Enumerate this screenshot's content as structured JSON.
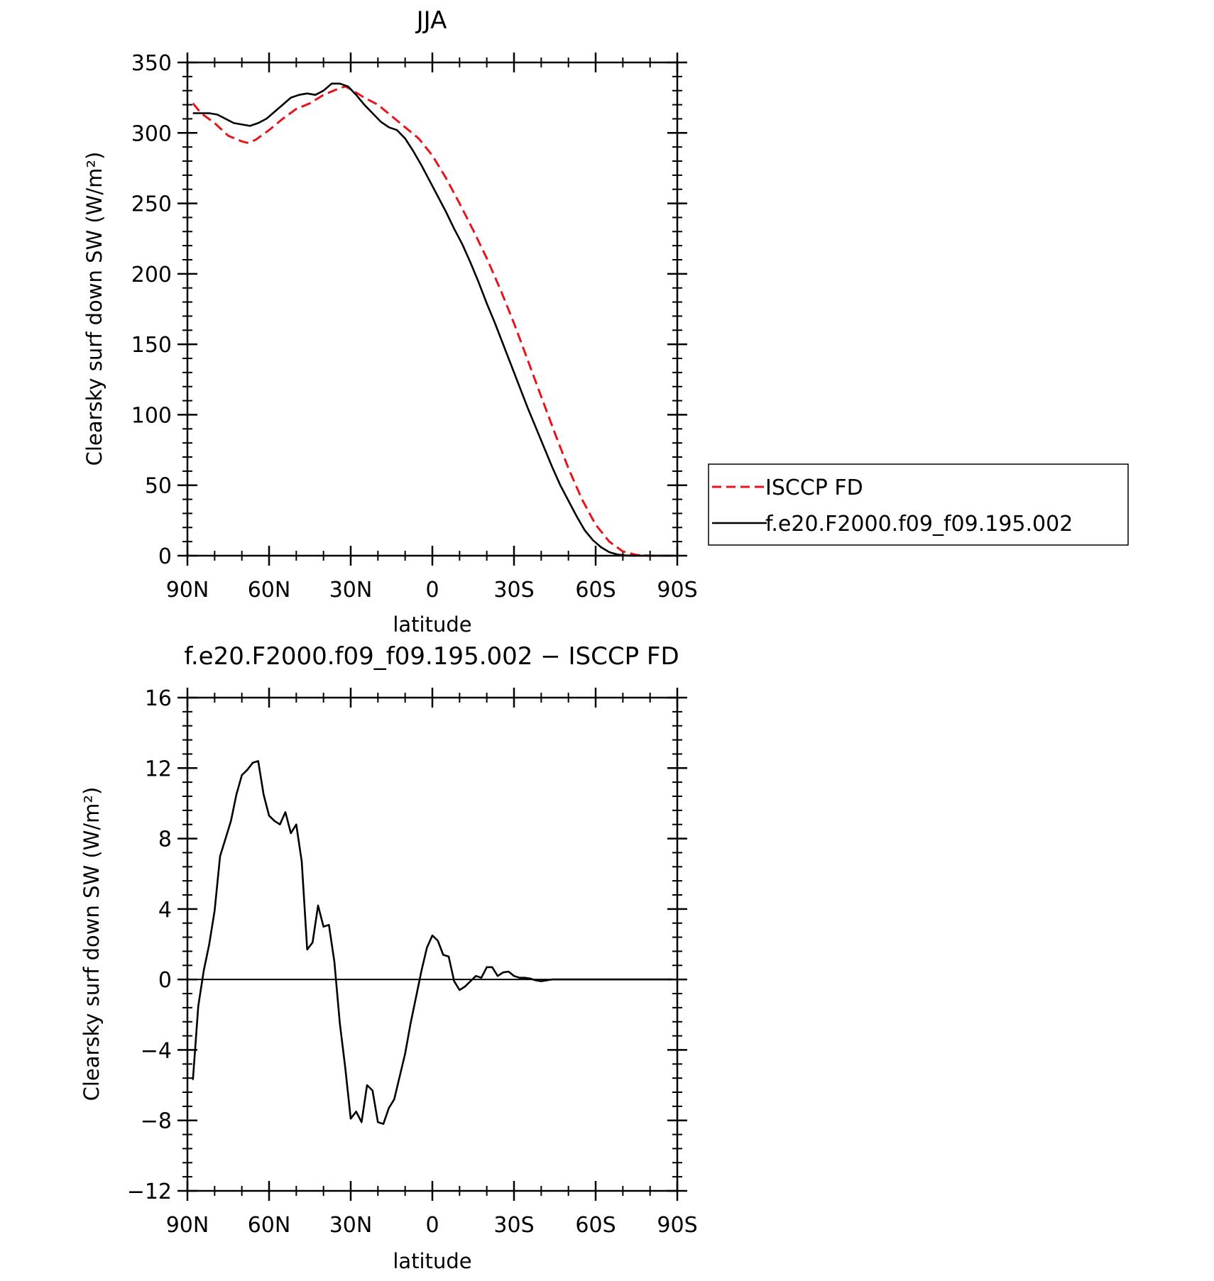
{
  "chart_data": [
    {
      "type": "line",
      "title": "JJA",
      "xlabel": "latitude",
      "ylabel": "Clearsky surf down SW (W/m²)",
      "xlim": [
        90,
        -90
      ],
      "ylim": [
        0,
        350
      ],
      "x_tick_values": [
        90,
        60,
        30,
        0,
        -30,
        -60,
        -90
      ],
      "x_tick_labels": [
        "90N",
        "60N",
        "30N",
        "0",
        "30S",
        "60S",
        "90S"
      ],
      "y_tick_values": [
        0,
        50,
        100,
        150,
        200,
        250,
        300,
        350
      ],
      "y_tick_labels": [
        "0",
        "50",
        "100",
        "150",
        "200",
        "250",
        "300",
        "350"
      ],
      "grid": false,
      "legend": {
        "placement": "right-outside",
        "entries": [
          "ISCCP FD",
          "f.e20.F2000.f09_f09.195.002"
        ]
      },
      "series": [
        {
          "name": "ISCCP FD",
          "color": "#e8141b",
          "dash": "dashed",
          "x": [
            88,
            85,
            80,
            75,
            70,
            68,
            65,
            60,
            55,
            50,
            45,
            40,
            35,
            32,
            30,
            25,
            20,
            15,
            10,
            5,
            0,
            -5,
            -10,
            -15,
            -20,
            -25,
            -30,
            -35,
            -40,
            -45,
            -50,
            -55,
            -60,
            -65,
            -70,
            -75,
            -80,
            -85,
            -88
          ],
          "y": [
            321,
            314,
            307,
            298,
            294,
            293,
            295,
            302,
            310,
            317,
            321,
            327,
            331,
            333,
            331,
            325,
            320,
            312,
            304,
            296,
            284,
            268,
            250,
            231,
            211,
            189,
            165,
            139,
            113,
            87,
            62,
            40,
            22,
            10,
            3,
            0.5,
            0,
            0,
            0
          ]
        },
        {
          "name": "f.e20.F2000.f09_f09.195.002",
          "color": "#000000",
          "dash": "solid",
          "x": [
            88,
            85,
            82,
            79,
            76,
            73,
            70,
            67,
            64,
            61,
            58,
            55,
            52,
            49,
            46,
            43,
            40,
            37,
            34,
            31,
            28,
            25,
            22,
            19,
            16,
            13,
            10,
            7,
            4,
            1,
            -2,
            -5,
            -8,
            -11,
            -14,
            -17,
            -20,
            -23,
            -26,
            -29,
            -32,
            -35,
            -38,
            -41,
            -44,
            -47,
            -50,
            -53,
            -56,
            -59,
            -62,
            -65,
            -68,
            -71,
            -74,
            -77,
            -80,
            -83,
            -86,
            -88
          ],
          "y": [
            314,
            314,
            314,
            313,
            310,
            307,
            306,
            305,
            307,
            310,
            315,
            320,
            325,
            327,
            328,
            327,
            330,
            335,
            335,
            333,
            327,
            320,
            314,
            308,
            304,
            302,
            296,
            287,
            277,
            266,
            255,
            244,
            232,
            221,
            208,
            194,
            179,
            165,
            150,
            135,
            120,
            105,
            91,
            77,
            63,
            50,
            39,
            28,
            18,
            11,
            6,
            2.5,
            0.8,
            0.2,
            0,
            0,
            0,
            0,
            0,
            0
          ]
        }
      ]
    },
    {
      "type": "line",
      "title": "f.e20.F2000.f09_f09.195.002 − ISCCP FD",
      "xlabel": "latitude",
      "ylabel": "Clearsky surf down SW (W/m²)",
      "xlim": [
        90,
        -90
      ],
      "ylim": [
        -12,
        16
      ],
      "x_tick_values": [
        90,
        60,
        30,
        0,
        -30,
        -60,
        -90
      ],
      "x_tick_labels": [
        "90N",
        "60N",
        "30N",
        "0",
        "30S",
        "60S",
        "90S"
      ],
      "y_tick_values": [
        -12,
        -8,
        -4,
        0,
        4,
        8,
        12,
        16
      ],
      "y_tick_labels": [
        "−12",
        "−8",
        "−4",
        "0",
        "4",
        "8",
        "12",
        "16"
      ],
      "grid": false,
      "reference_line": 0,
      "series": [
        {
          "color": "#000000",
          "dash": "solid",
          "x": [
            88,
            86,
            84,
            82,
            80,
            78,
            76,
            74,
            72,
            70,
            68,
            66,
            64,
            62,
            60,
            58,
            56,
            54,
            52,
            50,
            48,
            46,
            44,
            42,
            40,
            38,
            36,
            34,
            32,
            30,
            28,
            26,
            24,
            22,
            20,
            18,
            16,
            14,
            12,
            10,
            8,
            6,
            4,
            2,
            0,
            -2,
            -4,
            -6,
            -8,
            -10,
            -12,
            -14,
            -16,
            -18,
            -20,
            -22,
            -24,
            -26,
            -28,
            -30,
            -32,
            -34,
            -36,
            -38,
            -40,
            -42,
            -44,
            -46,
            -48,
            -50,
            -52,
            -54,
            -56,
            -58,
            -60,
            -62,
            -64,
            -66,
            -68,
            -70,
            -72,
            -74,
            -76,
            -78,
            -80,
            -82,
            -84,
            -86,
            -88
          ],
          "y": [
            -5.7,
            -1.5,
            0.5,
            2.0,
            3.9,
            7.0,
            8.0,
            9.0,
            10.5,
            11.6,
            11.9,
            12.3,
            12.4,
            10.5,
            9.3,
            9.0,
            8.8,
            9.5,
            8.3,
            8.8,
            6.7,
            1.7,
            2.1,
            4.2,
            3.0,
            3.1,
            1.0,
            -2.5,
            -5.0,
            -7.9,
            -7.5,
            -8.1,
            -6.0,
            -6.3,
            -8.1,
            -8.2,
            -7.3,
            -6.8,
            -5.5,
            -4.2,
            -2.5,
            -1.0,
            0.5,
            1.8,
            2.5,
            2.2,
            1.4,
            1.3,
            -0.1,
            -0.6,
            -0.4,
            -0.1,
            0.2,
            0.1,
            0.7,
            0.7,
            0.2,
            0.4,
            0.45,
            0.2,
            0.1,
            0.1,
            0.05,
            -0.05,
            -0.1,
            -0.05,
            0.0,
            0.0,
            0.0,
            0.0,
            0.0,
            0.0,
            0.0,
            0.0,
            0.0,
            0.0,
            0.0,
            0.0,
            0.0,
            0.0,
            0.0,
            0.0,
            0.0,
            0.0,
            0.0,
            0.0,
            0.0,
            0.0,
            0.0
          ]
        }
      ]
    }
  ]
}
